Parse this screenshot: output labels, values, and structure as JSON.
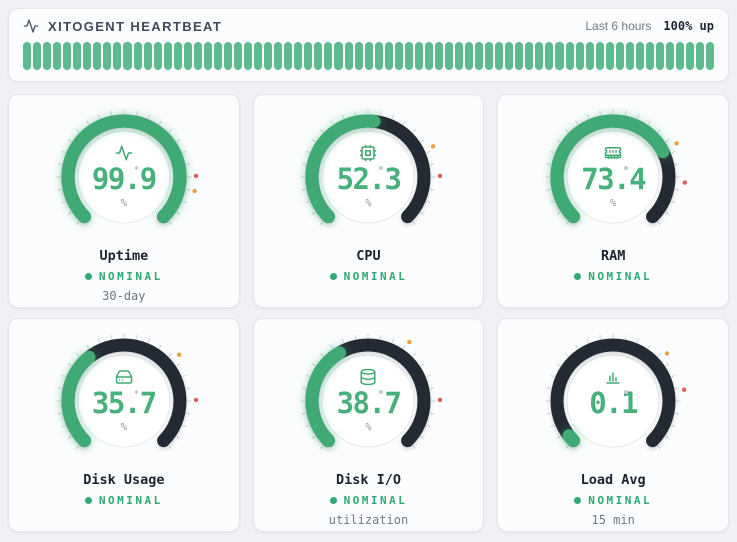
{
  "header": {
    "title": "XITOGENT HEARTBEAT",
    "range_label": "Last 6 hours",
    "uptime_label": "100% up",
    "segments": 69,
    "segment_status": "up"
  },
  "colors": {
    "bar_green": "#5eba8e",
    "arc_green": "#3faa73",
    "value_green": "#47b17d",
    "track_dark": "#232a33",
    "status_green": "#2fa874",
    "tick_gray": "#c8d1d7",
    "warning_orange": "#e6a23c",
    "critical_red": "#dd5b5b",
    "circle_stroke": "#e0eaed"
  },
  "gauges": [
    {
      "label": "Uptime",
      "value": "99.9",
      "unit": "%",
      "status": "NOMINAL",
      "subtitle": "30-day",
      "icon": "activity",
      "max": 100,
      "markers": [
        {
          "color": "#e6a23c",
          "frac": 0.875
        },
        {
          "color": "#dd5b5b",
          "frac": 0.83
        }
      ]
    },
    {
      "label": "CPU",
      "value": "52.3",
      "unit": "%",
      "status": "NOMINAL",
      "subtitle": "",
      "icon": "cpu",
      "max": 100,
      "markers": [
        {
          "color": "#e6a23c",
          "frac": 0.74
        },
        {
          "color": "#dd5b5b",
          "frac": 0.83
        }
      ]
    },
    {
      "label": "RAM",
      "value": "73.4",
      "unit": "%",
      "status": "NOMINAL",
      "subtitle": "",
      "icon": "memory",
      "max": 100,
      "markers": [
        {
          "color": "#e6a23c",
          "frac": 0.73
        },
        {
          "color": "#dd5b5b",
          "frac": 0.85
        }
      ]
    },
    {
      "label": "Disk Usage",
      "value": "35.7",
      "unit": "%",
      "status": "NOMINAL",
      "subtitle": "",
      "icon": "hard-drive",
      "max": 100,
      "markers": [
        {
          "color": "#e6a23c",
          "frac": 0.685
        },
        {
          "color": "#dd5b5b",
          "frac": 0.83
        }
      ]
    },
    {
      "label": "Disk I/O",
      "value": "38.7",
      "unit": "%",
      "status": "NOMINAL",
      "subtitle": "utilization",
      "icon": "database",
      "max": 100,
      "markers": [
        {
          "color": "#e6a23c",
          "frac": 0.63
        },
        {
          "color": "#dd5b5b",
          "frac": 0.83
        }
      ]
    },
    {
      "label": "Load Avg",
      "value": "0.1",
      "unit": "",
      "status": "NOMINAL",
      "subtitle": "15 min",
      "icon": "bar-chart",
      "max": 4,
      "markers": [
        {
          "color": "#e6a23c",
          "frac": 0.68
        },
        {
          "color": "#dd5b5b",
          "frac": 0.8
        }
      ]
    }
  ]
}
